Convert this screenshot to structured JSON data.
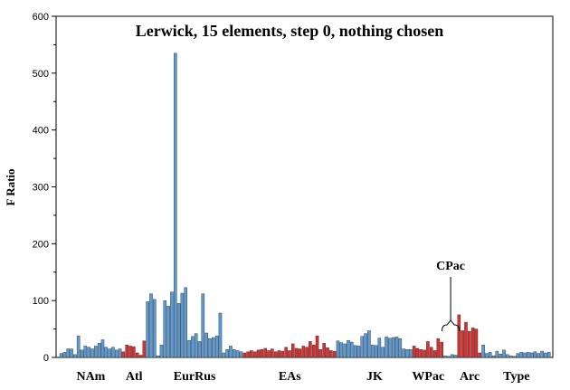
{
  "chart_data": {
    "type": "bar",
    "title": "Lerwick, 15 elements, step 0, nothing chosen",
    "xlabel": "",
    "ylabel": "F Ratio",
    "ylim": [
      0,
      600
    ],
    "yticks": [
      0,
      100,
      200,
      300,
      400,
      500,
      600
    ],
    "grid": false,
    "colors": {
      "blue": "#5B9BD5",
      "red": "#D93030"
    },
    "groups": [
      {
        "label": "NAm",
        "color": "blue",
        "values": [
          7,
          9,
          15,
          15,
          5,
          38,
          13,
          20,
          18,
          15,
          20,
          25,
          31,
          18,
          15,
          18,
          13,
          15
        ]
      },
      {
        "label": "Atl",
        "color": "red",
        "values": [
          10,
          22,
          20,
          19,
          8,
          4,
          29
        ]
      },
      {
        "label": "EurRus",
        "color": "blue",
        "values": [
          98,
          112,
          102,
          3,
          22,
          100,
          90,
          115,
          535,
          95,
          113,
          123,
          30,
          37,
          42,
          28,
          112,
          43,
          33,
          35,
          38,
          78,
          8,
          14,
          20,
          14,
          12,
          10
        ]
      },
      {
        "label": "EAs",
        "color": "red",
        "values": [
          8,
          10,
          12,
          10,
          13,
          14,
          16,
          12,
          15,
          10,
          12,
          11,
          18,
          12,
          24,
          16,
          15,
          20,
          18,
          28,
          22,
          38,
          14,
          25,
          17,
          12,
          11
        ]
      },
      {
        "label": "JK",
        "color": "blue",
        "values": [
          29,
          26,
          24,
          30,
          27,
          21,
          20,
          37,
          42,
          47,
          22,
          21,
          34,
          18,
          36,
          34,
          35,
          36,
          33,
          15,
          14,
          14
        ]
      },
      {
        "label": "WPac",
        "color": "red",
        "values": [
          20,
          16,
          14,
          13,
          28,
          18,
          12,
          33,
          27
        ]
      },
      {
        "label": "CPac",
        "color": "blue",
        "values": [
          3,
          2,
          5,
          4
        ]
      },
      {
        "label": "Arc",
        "color": "red",
        "values": [
          75,
          47,
          62,
          46,
          52,
          50,
          8
        ]
      },
      {
        "label": "Type",
        "color": "blue",
        "values": [
          22,
          7,
          9,
          3,
          11,
          6,
          13,
          5,
          3,
          2,
          7,
          9,
          8,
          9,
          8,
          10,
          7,
          11,
          8,
          9
        ]
      }
    ],
    "annotations": [
      {
        "text": "CPac",
        "target_group": "CPac"
      }
    ]
  }
}
